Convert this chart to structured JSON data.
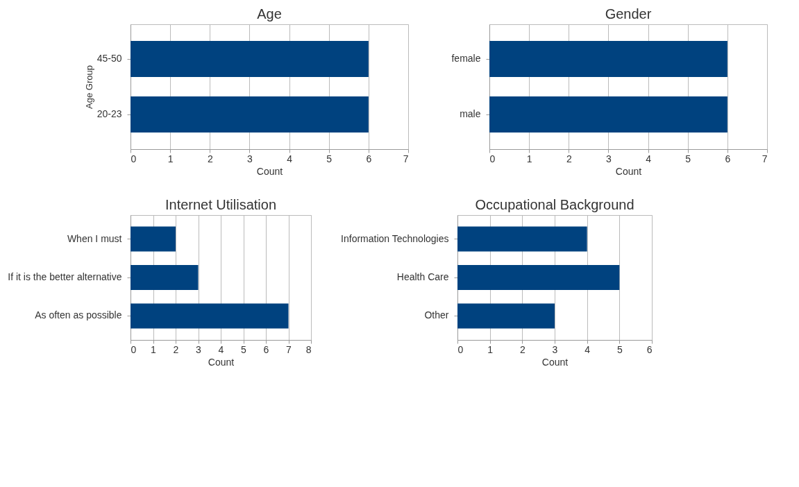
{
  "chart_data": [
    {
      "type": "bar",
      "orientation": "horizontal",
      "title": "Age",
      "xlabel": "Count",
      "ylabel": "Age Group",
      "categories": [
        "45-50",
        "20-23"
      ],
      "values": [
        6,
        6
      ],
      "color": "#00427f",
      "xlim": [
        0,
        7
      ],
      "xticks": [
        0,
        1,
        2,
        3,
        4,
        5,
        6,
        7
      ],
      "grid": "x"
    },
    {
      "type": "bar",
      "orientation": "horizontal",
      "title": "Gender",
      "xlabel": "Count",
      "categories": [
        "female",
        "male"
      ],
      "values": [
        6,
        6
      ],
      "color": "#00427f",
      "xlim": [
        0,
        7
      ],
      "xticks": [
        0,
        1,
        2,
        3,
        4,
        5,
        6,
        7
      ],
      "grid": "x"
    },
    {
      "type": "bar",
      "orientation": "horizontal",
      "title": "Internet Utilisation",
      "xlabel": "Count",
      "categories": [
        "When I must",
        "If it is the better alternative",
        "As often as possible"
      ],
      "values": [
        2,
        3,
        7
      ],
      "color": "#00427f",
      "xlim": [
        0,
        8
      ],
      "xticks": [
        0,
        1,
        2,
        3,
        4,
        5,
        6,
        7,
        8
      ],
      "grid": "x"
    },
    {
      "type": "bar",
      "orientation": "horizontal",
      "title": "Occupational Background",
      "xlabel": "Count",
      "categories": [
        "Information Technologies",
        "Health Care",
        "Other"
      ],
      "values": [
        4,
        5,
        3
      ],
      "color": "#00427f",
      "xlim": [
        0,
        6
      ],
      "xticks": [
        0,
        1,
        2,
        3,
        4,
        5,
        6
      ],
      "grid": "x"
    }
  ]
}
